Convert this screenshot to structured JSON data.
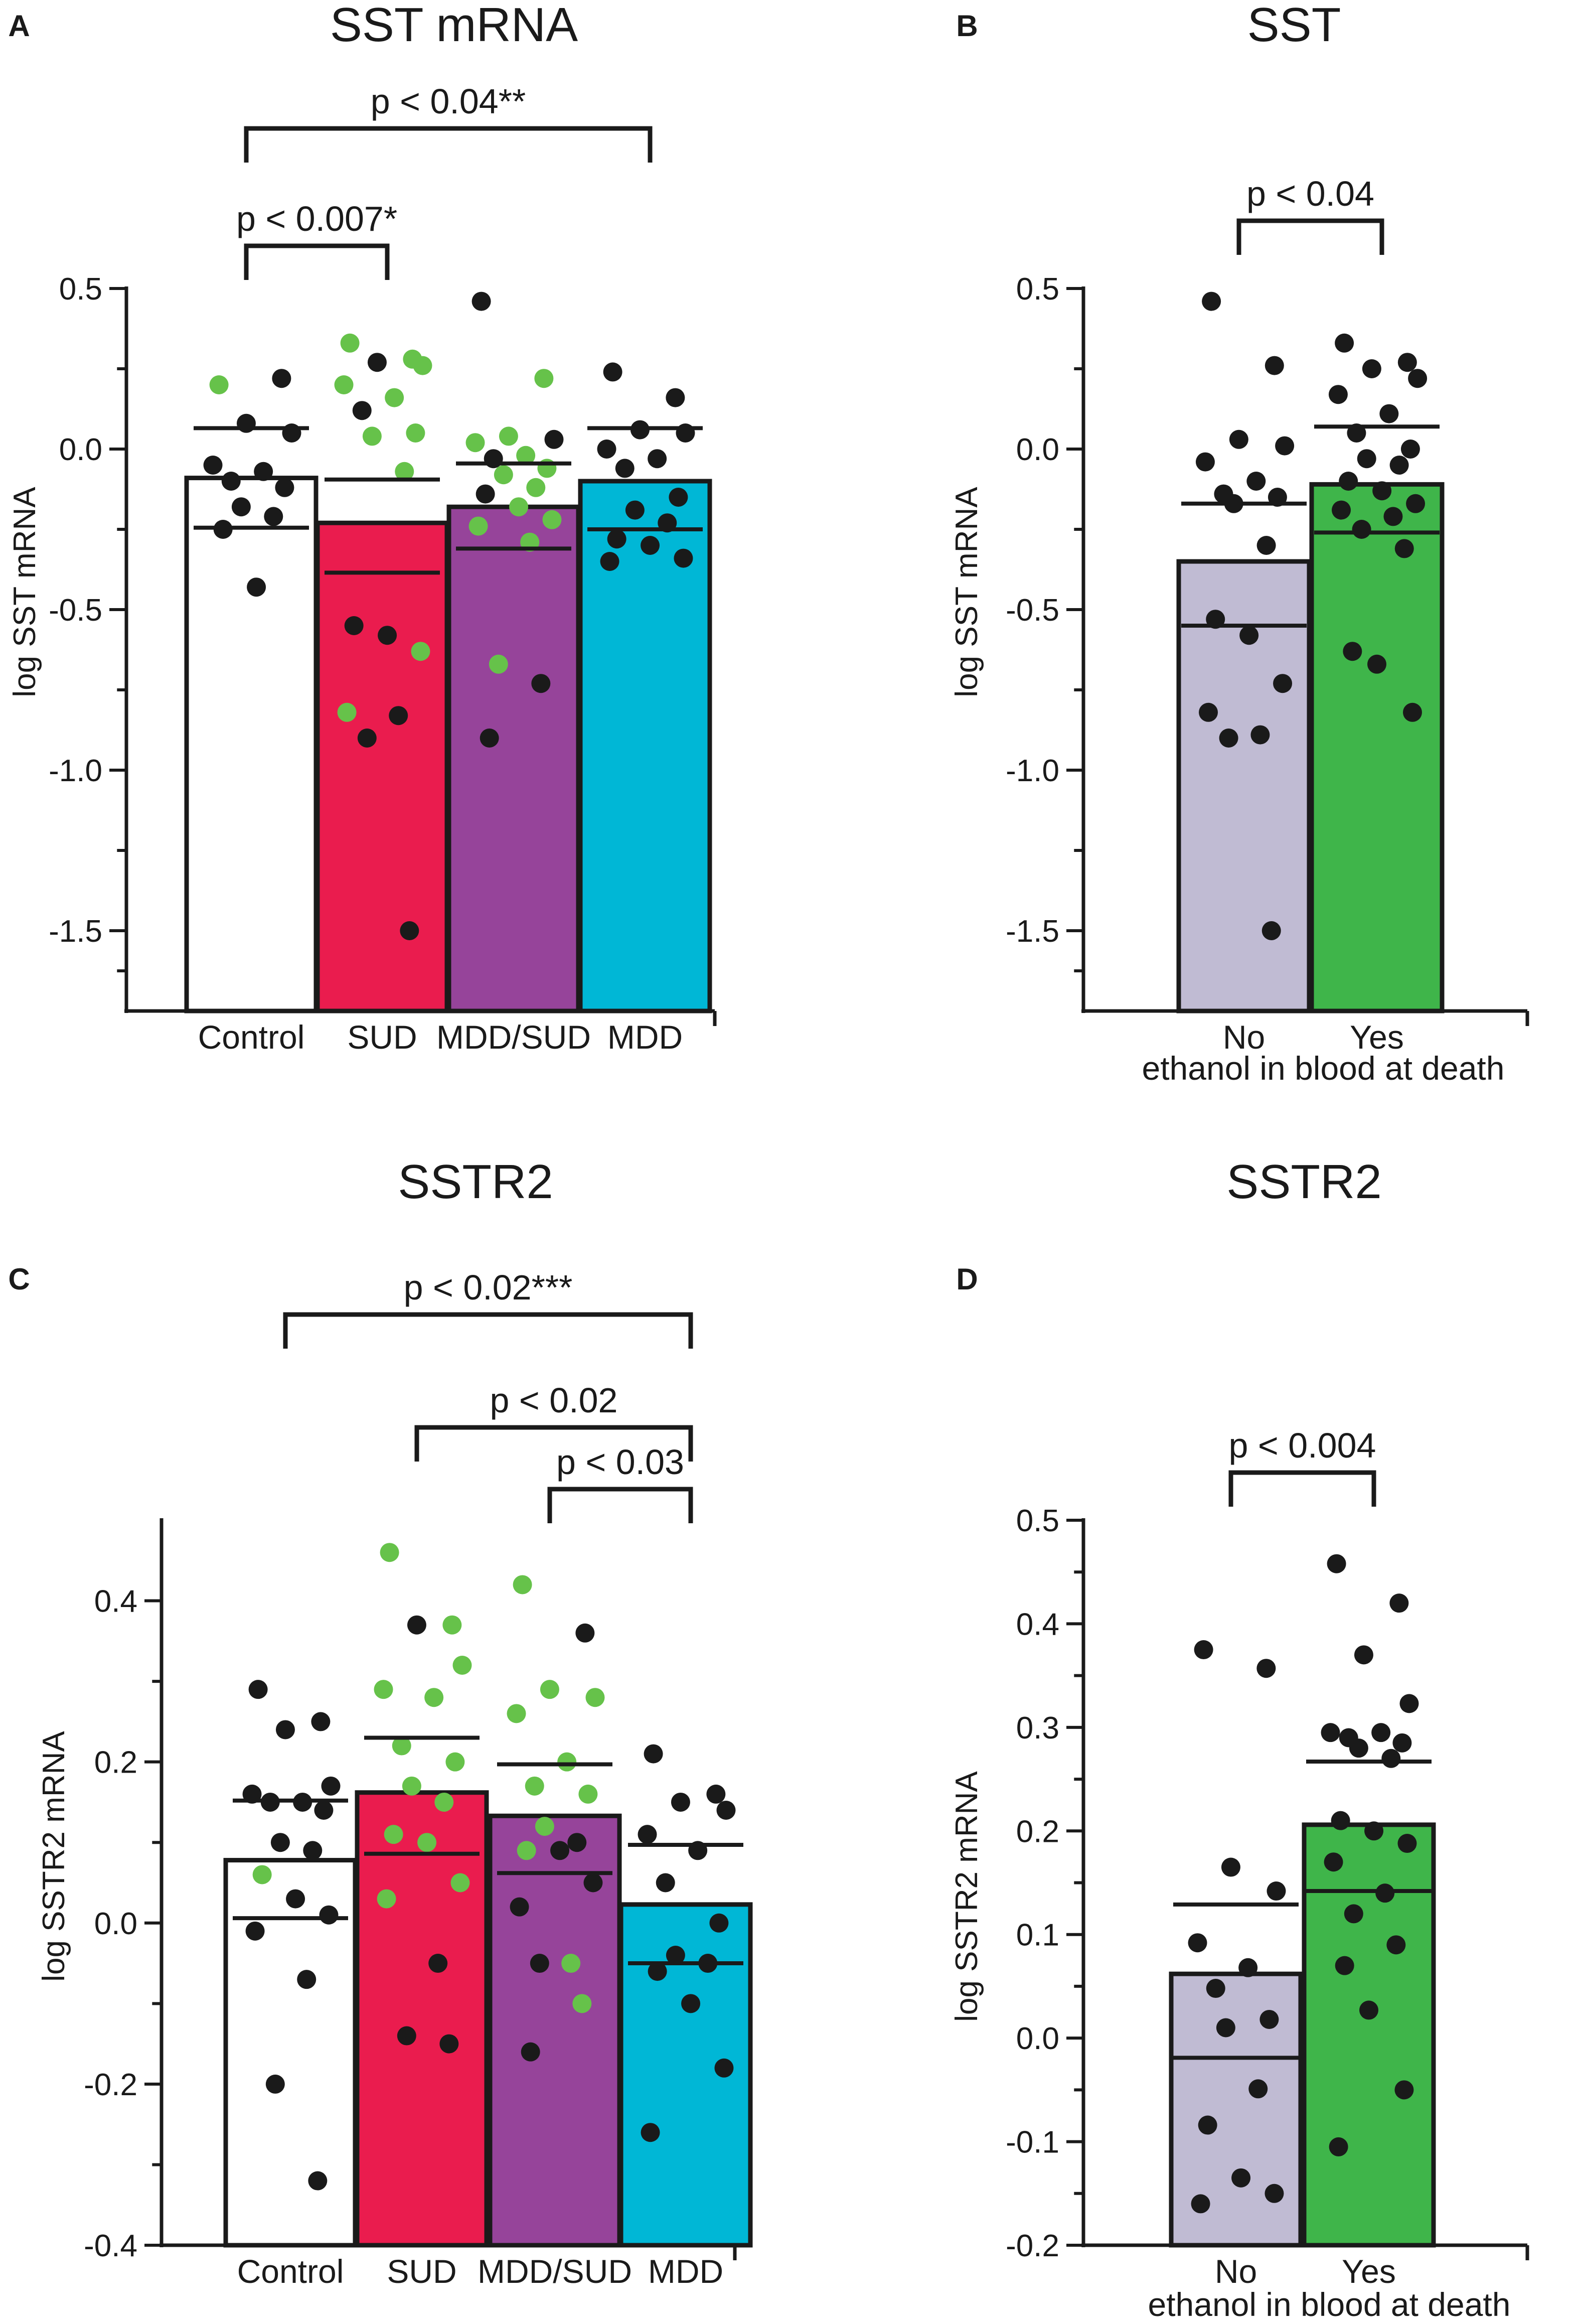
{
  "colors": {
    "control": "#ffffff",
    "sud": "#ea1c4e",
    "mdd_sud": "#96449a",
    "mdd": "#00b7d6",
    "no": "#c0bbd3",
    "yes": "#3fb54a",
    "dot_black": "#1a1a1a",
    "dot_green": "#66c24a",
    "axis": "#1a1a1a"
  },
  "chart_data": [
    {
      "panel": "A",
      "type": "bar",
      "title": "SST mRNA",
      "xlabel": "",
      "ylabel": "log SST mRNA",
      "ylim": [
        -1.75,
        0.5
      ],
      "yticks": [
        0.5,
        0.0,
        -0.5,
        -1.0,
        -1.5
      ],
      "ytick_labels": [
        "0.5",
        "0.0",
        "-0.5",
        "-1.0",
        "-1.5"
      ],
      "categories": [
        "Control",
        "SUD",
        "MDD/SUD",
        "MDD"
      ],
      "bar_colors": [
        "control",
        "sud",
        "mdd_sud",
        "mdd"
      ],
      "values": [
        -0.09,
        -0.23,
        -0.18,
        -0.1
      ],
      "error_upper": [
        0.065,
        -0.095,
        -0.045,
        0.065
      ],
      "error_lower": [
        -0.245,
        -0.385,
        -0.31,
        -0.25
      ],
      "points": [
        [
          [
            0.2,
            "g"
          ],
          [
            0.22,
            "k"
          ],
          [
            0.08,
            "k"
          ],
          [
            0.05,
            "k"
          ],
          [
            -0.05,
            "k"
          ],
          [
            -0.07,
            "k"
          ],
          [
            -0.1,
            "k"
          ],
          [
            -0.12,
            "k"
          ],
          [
            -0.18,
            "k"
          ],
          [
            -0.21,
            "k"
          ],
          [
            -0.25,
            "k"
          ],
          [
            -0.43,
            "k"
          ]
        ],
        [
          [
            0.33,
            "g"
          ],
          [
            0.28,
            "g"
          ],
          [
            0.27,
            "k"
          ],
          [
            0.26,
            "g"
          ],
          [
            0.2,
            "g"
          ],
          [
            0.16,
            "g"
          ],
          [
            0.12,
            "k"
          ],
          [
            0.05,
            "g"
          ],
          [
            0.04,
            "g"
          ],
          [
            -0.07,
            "g"
          ],
          [
            -0.55,
            "k"
          ],
          [
            -0.58,
            "k"
          ],
          [
            -0.63,
            "g"
          ],
          [
            -0.82,
            "g"
          ],
          [
            -0.83,
            "k"
          ],
          [
            -0.9,
            "k"
          ],
          [
            -1.5,
            "k"
          ]
        ],
        [
          [
            0.46,
            "k"
          ],
          [
            0.22,
            "g"
          ],
          [
            0.04,
            "g"
          ],
          [
            0.03,
            "k"
          ],
          [
            0.02,
            "g"
          ],
          [
            -0.02,
            "g"
          ],
          [
            -0.03,
            "k"
          ],
          [
            -0.06,
            "g"
          ],
          [
            -0.08,
            "g"
          ],
          [
            -0.12,
            "g"
          ],
          [
            -0.14,
            "k"
          ],
          [
            -0.18,
            "g"
          ],
          [
            -0.22,
            "g"
          ],
          [
            -0.24,
            "g"
          ],
          [
            -0.29,
            "g"
          ],
          [
            -0.67,
            "g"
          ],
          [
            -0.73,
            "k"
          ],
          [
            -0.9,
            "k"
          ]
        ],
        [
          [
            0.24,
            "k"
          ],
          [
            0.16,
            "k"
          ],
          [
            0.06,
            "k"
          ],
          [
            0.05,
            "k"
          ],
          [
            0.0,
            "k"
          ],
          [
            -0.03,
            "k"
          ],
          [
            -0.06,
            "k"
          ],
          [
            -0.15,
            "k"
          ],
          [
            -0.19,
            "k"
          ],
          [
            -0.23,
            "k"
          ],
          [
            -0.28,
            "k"
          ],
          [
            -0.3,
            "k"
          ],
          [
            -0.34,
            "k"
          ],
          [
            -0.35,
            "k"
          ]
        ]
      ],
      "brackets": [
        {
          "from": 0,
          "to": 3,
          "label": "p < 0.04**",
          "level": 1
        },
        {
          "from": 0,
          "to": 1,
          "label": "p < 0.007*",
          "level": 0
        }
      ],
      "tick_labels": [
        "Control",
        "SUD",
        "MDD/SUD",
        "MDD"
      ],
      "caption": ""
    },
    {
      "panel": "B",
      "type": "bar",
      "title": "SST",
      "xlabel": "ethanol in blood at death",
      "ylabel": "log SST mRNA",
      "ylim": [
        -1.75,
        0.5
      ],
      "yticks": [
        0.5,
        0.0,
        -0.5,
        -1.0,
        -1.5
      ],
      "ytick_labels": [
        "0.5",
        "0.0",
        "-0.5",
        "-1.0",
        "-1.5"
      ],
      "categories": [
        "No",
        "Yes"
      ],
      "bar_colors": [
        "no",
        "yes"
      ],
      "values": [
        -0.35,
        -0.11
      ],
      "error_upper": [
        -0.17,
        0.07
      ],
      "error_lower": [
        -0.55,
        -0.26
      ],
      "points": [
        [
          [
            0.46,
            "k"
          ],
          [
            0.26,
            "k"
          ],
          [
            0.03,
            "k"
          ],
          [
            0.01,
            "k"
          ],
          [
            -0.04,
            "k"
          ],
          [
            -0.1,
            "k"
          ],
          [
            -0.14,
            "k"
          ],
          [
            -0.15,
            "k"
          ],
          [
            -0.17,
            "k"
          ],
          [
            -0.3,
            "k"
          ],
          [
            -0.53,
            "k"
          ],
          [
            -0.58,
            "k"
          ],
          [
            -0.73,
            "k"
          ],
          [
            -0.82,
            "k"
          ],
          [
            -0.89,
            "k"
          ],
          [
            -0.9,
            "k"
          ],
          [
            -1.5,
            "k"
          ]
        ],
        [
          [
            0.33,
            "k"
          ],
          [
            0.27,
            "k"
          ],
          [
            0.25,
            "k"
          ],
          [
            0.22,
            "k"
          ],
          [
            0.17,
            "k"
          ],
          [
            0.11,
            "k"
          ],
          [
            0.05,
            "k"
          ],
          [
            0.0,
            "k"
          ],
          [
            -0.03,
            "k"
          ],
          [
            -0.05,
            "k"
          ],
          [
            -0.1,
            "k"
          ],
          [
            -0.13,
            "k"
          ],
          [
            -0.17,
            "k"
          ],
          [
            -0.19,
            "k"
          ],
          [
            -0.21,
            "k"
          ],
          [
            -0.25,
            "k"
          ],
          [
            -0.31,
            "k"
          ],
          [
            -0.63,
            "k"
          ],
          [
            -0.67,
            "k"
          ],
          [
            -0.82,
            "k"
          ]
        ]
      ],
      "brackets": [
        {
          "from": 0,
          "to": 1,
          "label": "p < 0.04",
          "level": 0
        }
      ],
      "tick_labels": [
        "No",
        "Yes"
      ],
      "caption": "ethanol in blood at death"
    },
    {
      "panel": "C",
      "type": "bar",
      "title": "SSTR2",
      "xlabel": "",
      "ylabel": "log SSTR2 mRNA",
      "ylim": [
        -0.4,
        0.5
      ],
      "yticks": [
        0.4,
        0.2,
        0.0,
        -0.2,
        -0.4
      ],
      "ytick_labels": [
        "0.4",
        "0.2",
        "0.0",
        "-0.2",
        "-0.4"
      ],
      "categories": [
        "Control",
        "SUD",
        "MDD/SUD",
        "MDD"
      ],
      "bar_colors": [
        "control",
        "sud",
        "mdd_sud",
        "mdd"
      ],
      "values": [
        0.078,
        0.162,
        0.133,
        0.023
      ],
      "error_upper": [
        0.152,
        0.23,
        0.197,
        0.097
      ],
      "error_lower": [
        0.006,
        0.086,
        0.062,
        -0.05
      ],
      "points": [
        [
          [
            0.29,
            "k"
          ],
          [
            0.25,
            "k"
          ],
          [
            0.24,
            "k"
          ],
          [
            0.17,
            "k"
          ],
          [
            0.16,
            "k"
          ],
          [
            0.15,
            "k"
          ],
          [
            0.15,
            "k"
          ],
          [
            0.14,
            "k"
          ],
          [
            0.1,
            "k"
          ],
          [
            0.09,
            "k"
          ],
          [
            0.06,
            "g"
          ],
          [
            0.03,
            "k"
          ],
          [
            0.01,
            "k"
          ],
          [
            -0.01,
            "k"
          ],
          [
            -0.07,
            "k"
          ],
          [
            -0.2,
            "k"
          ],
          [
            -0.32,
            "k"
          ]
        ],
        [
          [
            0.46,
            "g"
          ],
          [
            0.37,
            "g"
          ],
          [
            0.37,
            "k"
          ],
          [
            0.32,
            "g"
          ],
          [
            0.29,
            "g"
          ],
          [
            0.28,
            "g"
          ],
          [
            0.22,
            "g"
          ],
          [
            0.2,
            "g"
          ],
          [
            0.17,
            "g"
          ],
          [
            0.15,
            "g"
          ],
          [
            0.11,
            "g"
          ],
          [
            0.1,
            "g"
          ],
          [
            0.05,
            "g"
          ],
          [
            0.03,
            "g"
          ],
          [
            -0.05,
            "k"
          ],
          [
            -0.14,
            "k"
          ],
          [
            -0.15,
            "k"
          ]
        ],
        [
          [
            0.42,
            "g"
          ],
          [
            0.36,
            "k"
          ],
          [
            0.29,
            "g"
          ],
          [
            0.28,
            "g"
          ],
          [
            0.26,
            "g"
          ],
          [
            0.2,
            "g"
          ],
          [
            0.17,
            "g"
          ],
          [
            0.16,
            "g"
          ],
          [
            0.12,
            "g"
          ],
          [
            0.1,
            "k"
          ],
          [
            0.09,
            "g"
          ],
          [
            0.09,
            "k"
          ],
          [
            0.05,
            "k"
          ],
          [
            0.02,
            "k"
          ],
          [
            -0.05,
            "g"
          ],
          [
            -0.05,
            "k"
          ],
          [
            -0.1,
            "g"
          ],
          [
            -0.16,
            "k"
          ]
        ],
        [
          [
            0.21,
            "k"
          ],
          [
            0.16,
            "k"
          ],
          [
            0.15,
            "k"
          ],
          [
            0.14,
            "k"
          ],
          [
            0.11,
            "k"
          ],
          [
            0.09,
            "k"
          ],
          [
            0.05,
            "k"
          ],
          [
            0.0,
            "k"
          ],
          [
            -0.04,
            "k"
          ],
          [
            -0.05,
            "k"
          ],
          [
            -0.06,
            "k"
          ],
          [
            -0.1,
            "k"
          ],
          [
            -0.18,
            "k"
          ],
          [
            -0.26,
            "k"
          ]
        ]
      ],
      "brackets": [
        {
          "from": 0,
          "to": 3,
          "label": "p < 0.02***",
          "level": 2
        },
        {
          "from": 1,
          "to": 3,
          "label": "p < 0.02",
          "level": 1
        },
        {
          "from": 2,
          "to": 3,
          "label": "p < 0.03",
          "level": 0
        }
      ],
      "tick_labels": [
        "Control",
        "SUD",
        "MDD/SUD",
        "MDD"
      ],
      "caption": ""
    },
    {
      "panel": "D",
      "type": "bar",
      "title": "SSTR2",
      "xlabel": "ethanol in blood at death",
      "ylabel": "log SSTR2 mRNA",
      "ylim": [
        -0.2,
        0.5
      ],
      "yticks": [
        0.5,
        0.4,
        0.3,
        0.2,
        0.1,
        0.0,
        -0.1,
        -0.2
      ],
      "ytick_labels": [
        "0.5",
        "0.4",
        "0.3",
        "0.2",
        "0.1",
        "0.0",
        "-0.1",
        "-0.2"
      ],
      "categories": [
        "No",
        "Yes"
      ],
      "bar_colors": [
        "no",
        "yes"
      ],
      "values": [
        0.062,
        0.206
      ],
      "error_upper": [
        0.129,
        0.267
      ],
      "error_lower": [
        -0.019,
        0.142
      ],
      "points": [
        [
          [
            0.375,
            "k"
          ],
          [
            0.357,
            "k"
          ],
          [
            0.165,
            "k"
          ],
          [
            0.142,
            "k"
          ],
          [
            0.092,
            "k"
          ],
          [
            0.068,
            "k"
          ],
          [
            0.048,
            "k"
          ],
          [
            0.018,
            "k"
          ],
          [
            0.01,
            "k"
          ],
          [
            -0.049,
            "k"
          ],
          [
            -0.084,
            "k"
          ],
          [
            -0.135,
            "k"
          ],
          [
            -0.15,
            "k"
          ],
          [
            -0.16,
            "k"
          ]
        ],
        [
          [
            0.458,
            "k"
          ],
          [
            0.42,
            "k"
          ],
          [
            0.37,
            "k"
          ],
          [
            0.323,
            "k"
          ],
          [
            0.295,
            "k"
          ],
          [
            0.295,
            "k"
          ],
          [
            0.29,
            "k"
          ],
          [
            0.285,
            "k"
          ],
          [
            0.28,
            "k"
          ],
          [
            0.27,
            "k"
          ],
          [
            0.21,
            "k"
          ],
          [
            0.2,
            "k"
          ],
          [
            0.188,
            "k"
          ],
          [
            0.17,
            "k"
          ],
          [
            0.14,
            "k"
          ],
          [
            0.12,
            "k"
          ],
          [
            0.09,
            "k"
          ],
          [
            0.07,
            "k"
          ],
          [
            0.027,
            "k"
          ],
          [
            -0.05,
            "k"
          ],
          [
            -0.105,
            "k"
          ]
        ]
      ],
      "brackets": [
        {
          "from": 0,
          "to": 1,
          "label": "p < 0.004",
          "level": 0
        }
      ],
      "tick_labels": [
        "No",
        "Yes"
      ],
      "caption": "ethanol in blood at death"
    }
  ]
}
